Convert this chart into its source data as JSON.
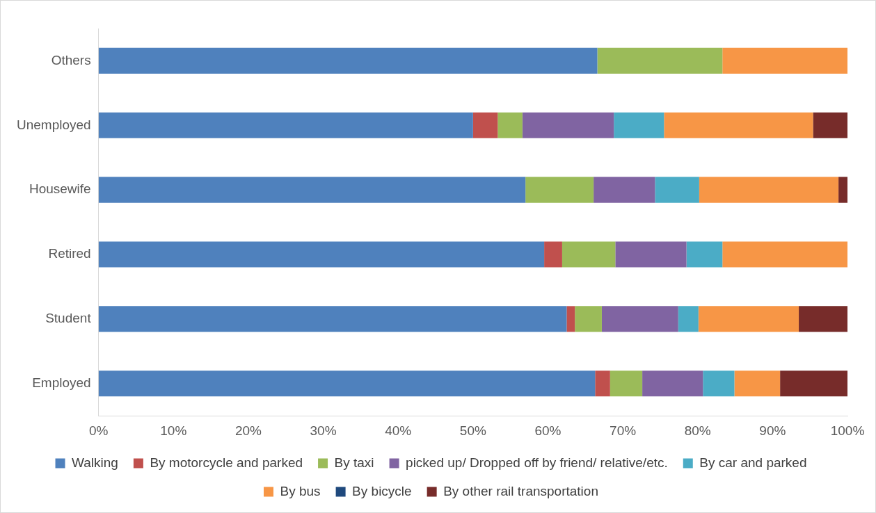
{
  "chart_data": {
    "type": "bar",
    "orientation": "horizontal",
    "stacked": true,
    "categories": [
      "Others",
      "Unemployed",
      "Housewife",
      "Retired",
      "Student",
      "Employed"
    ],
    "series": [
      {
        "name": "Walking",
        "color": "#4f81bd",
        "values": [
          66.6,
          50.0,
          57.0,
          59.5,
          62.5,
          66.3
        ]
      },
      {
        "name": "By motorcycle and parked",
        "color": "#c0504d",
        "values": [
          0,
          3.3,
          0,
          2.4,
          1.1,
          2.0
        ]
      },
      {
        "name": "By taxi",
        "color": "#9bbb59",
        "values": [
          16.7,
          3.3,
          9.1,
          7.1,
          3.6,
          4.3
        ]
      },
      {
        "name": "picked up/ Dropped off by friend/ relative/etc.",
        "color": "#8064a2",
        "values": [
          0,
          12.2,
          8.2,
          9.5,
          10.2,
          8.1
        ]
      },
      {
        "name": "By car and parked",
        "color": "#4bacc6",
        "values": [
          0,
          6.7,
          5.9,
          4.8,
          2.7,
          4.2
        ]
      },
      {
        "name": "By bus",
        "color": "#f79646",
        "values": [
          16.7,
          19.9,
          18.6,
          16.7,
          13.4,
          6.1
        ]
      },
      {
        "name": "By bicycle",
        "color": "#1f497d",
        "values": [
          0,
          0,
          0,
          0,
          0,
          0
        ]
      },
      {
        "name": "By other rail transportation",
        "color": "#772c2a",
        "values": [
          0,
          4.6,
          1.2,
          0,
          6.5,
          9.0
        ]
      }
    ],
    "xlim": [
      0,
      100
    ],
    "xticks": [
      {
        "value": 0,
        "label": "0%"
      },
      {
        "value": 10,
        "label": "10%"
      },
      {
        "value": 20,
        "label": "20%"
      },
      {
        "value": 30,
        "label": "30%"
      },
      {
        "value": 40,
        "label": "40%"
      },
      {
        "value": 50,
        "label": "50%"
      },
      {
        "value": 60,
        "label": "60%"
      },
      {
        "value": 70,
        "label": "70%"
      },
      {
        "value": 80,
        "label": "80%"
      },
      {
        "value": 90,
        "label": "90%"
      },
      {
        "value": 100,
        "label": "100%"
      }
    ],
    "grid": false,
    "legend": "bottom"
  }
}
